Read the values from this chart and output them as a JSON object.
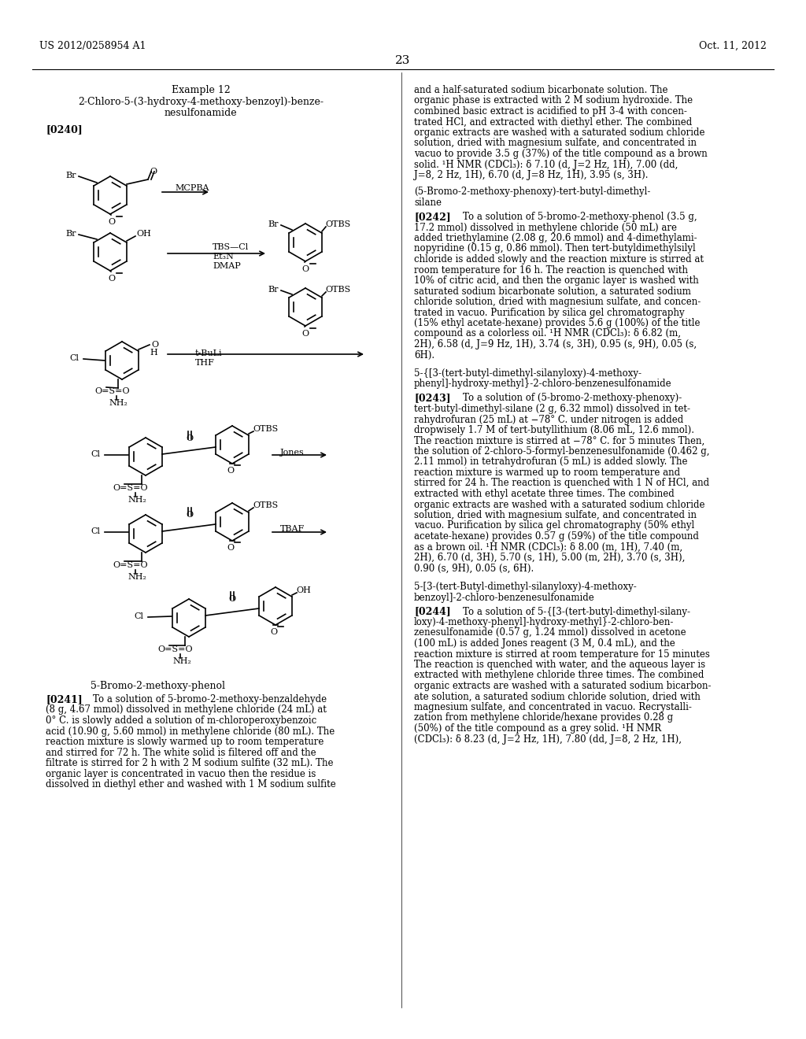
{
  "background_color": "#ffffff",
  "page_number": "23",
  "header_left": "US 2012/0258954 A1",
  "header_right": "Oct. 11, 2012",
  "title_text": "Example 12",
  "compound_title_1": "2-Chloro-5-(3-hydroxy-4-methoxy-benzoyl)-benze-",
  "compound_title_2": "nesulfonamide",
  "paragraph_tag_240": "[0240]",
  "caption_bottom": "5-Bromo-2-methoxy-phenol",
  "para_0241_tag": "[0241]",
  "para_0242_tag": "[0242]",
  "para_0243_tag": "[0243]",
  "para_0244_tag": "[0244]",
  "right_para_cont_lines": [
    "and a half-saturated sodium bicarbonate solution. The",
    "organic phase is extracted with 2 M sodium hydroxide. The",
    "combined basic extract is acidified to pH 3-4 with concen-",
    "trated HCl, and extracted with diethyl ether. The combined",
    "organic extracts are washed with a saturated sodium chloride",
    "solution, dried with magnesium sulfate, and concentrated in",
    "vacuo to provide 3.5 g (37%) of the title compound as a brown",
    "solid. ¹H NMR (CDCl₃): δ 7.10 (d, J=2 Hz, 1H), 7.00 (dd,",
    "J=8, 2 Hz, 1H), 6.70 (d, J=8 Hz, 1H), 3.95 (s, 3H)."
  ],
  "section_title_1a": "(5-Bromo-2-methoxy-phenoxy)-tert-butyl-dimethyl-",
  "section_title_1b": "silane",
  "para_0242_lines": [
    "To a solution of 5-bromo-2-methoxy-phenol (3.5 g,",
    "17.2 mmol) dissolved in methylene chloride (50 mL) are",
    "added triethylamine (2.08 g, 20.6 mmol) and 4-dimethylami-",
    "nopyridine (0.15 g, 0.86 mmol). Then tert-butyldimethylsilyl",
    "chloride is added slowly and the reaction mixture is stirred at",
    "room temperature for 16 h. The reaction is quenched with",
    "10% of citric acid, and then the organic layer is washed with",
    "saturated sodium bicarbonate solution, a saturated sodium",
    "chloride solution, dried with magnesium sulfate, and concen-",
    "trated in vacuo. Purification by silica gel chromatography",
    "(15% ethyl acetate-hexane) provides 5.6 g (100%) of the title",
    "compound as a colorless oil. ¹H NMR (CDCl₃): δ 6.82 (m,",
    "2H), 6.58 (d, J=9 Hz, 1H), 3.74 (s, 3H), 0.95 (s, 9H), 0.05 (s,",
    "6H)."
  ],
  "section_title_2a": "5-{[3-(tert-butyl-dimethyl-silanyloxy)-4-methoxy-",
  "section_title_2b": "phenyl]-hydroxy-methyl}-2-chloro-benzenesulfonamide",
  "para_0243_lines": [
    "To a solution of (5-bromo-2-methoxy-phenoxy)-",
    "tert-butyl-dimethyl-silane (2 g, 6.32 mmol) dissolved in tet-",
    "rahydrofuran (25 mL) at −78° C. under nitrogen is added",
    "dropwisely 1.7 M of tert-butyllithium (8.06 mL, 12.6 mmol).",
    "The reaction mixture is stirred at −78° C. for 5 minutes Then,",
    "the solution of 2-chloro-5-formyl-benzenesulfonamide (0.462 g,",
    "2.11 mmol) in tetrahydrofuran (5 mL) is added slowly. The",
    "reaction mixture is warmed up to room temperature and",
    "stirred for 24 h. The reaction is quenched with 1 N of HCl, and",
    "extracted with ethyl acetate three times. The combined",
    "organic extracts are washed with a saturated sodium chloride",
    "solution, dried with magnesium sulfate, and concentrated in",
    "vacuo. Purification by silica gel chromatography (50% ethyl",
    "acetate-hexane) provides 0.57 g (59%) of the title compound",
    "as a brown oil. ¹H NMR (CDCl₃): δ 8.00 (m, 1H), 7.40 (m,",
    "2H), 6.70 (d, 3H), 5.70 (s, 1H), 5.00 (m, 2H), 3.70 (s, 3H),",
    "0.90 (s, 9H), 0.05 (s, 6H)."
  ],
  "section_title_3a": "5-[3-(tert-Butyl-dimethyl-silanyloxy)-4-methoxy-",
  "section_title_3b": "benzoyl]-2-chloro-benzenesulfonamide",
  "para_0244_lines": [
    "To a solution of 5-{[3-(tert-butyl-dimethyl-silany-",
    "loxy)-4-methoxy-phenyl]-hydroxy-methyl}-2-chloro-ben-",
    "zenesulfonamide (0.57 g, 1.24 mmol) dissolved in acetone",
    "(100 mL) is added Jones reagent (3 M, 0.4 mL), and the",
    "reaction mixture is stirred at room temperature for 15 minutes",
    "The reaction is quenched with water, and the aqueous layer is",
    "extracted with methylene chloride three times. The combined",
    "organic extracts are washed with a saturated sodium bicarbon-",
    "ate solution, a saturated sodium chloride solution, dried with",
    "magnesium sulfate, and concentrated in vacuo. Recrystalli-",
    "zation from methylene chloride/hexane provides 0.28 g",
    "(50%) of the title compound as a grey solid. ¹H NMR",
    "(CDCl₃): δ 8.23 (d, J=2 Hz, 1H), 7.80 (dd, J=8, 2 Hz, 1H),"
  ],
  "para_0241_lines": [
    "To a solution of 5-bromo-2-methoxy-benzaldehyde",
    "(8 g, 4.67 mmol) dissolved in methylene chloride (24 mL) at",
    "0° C. is slowly added a solution of m-chloroperoxybenzoic",
    "acid (10.90 g, 5.60 mmol) in methylene chloride (80 mL). The",
    "reaction mixture is slowly warmed up to room temperature",
    "and stirred for 72 h. The white solid is filtered off and the",
    "filtrate is stirred for 2 h with 2 M sodium sulfite (32 mL). The",
    "organic layer is concentrated in vacuo then the residue is",
    "dissolved in diethyl ether and washed with 1 M sodium sulfite"
  ]
}
